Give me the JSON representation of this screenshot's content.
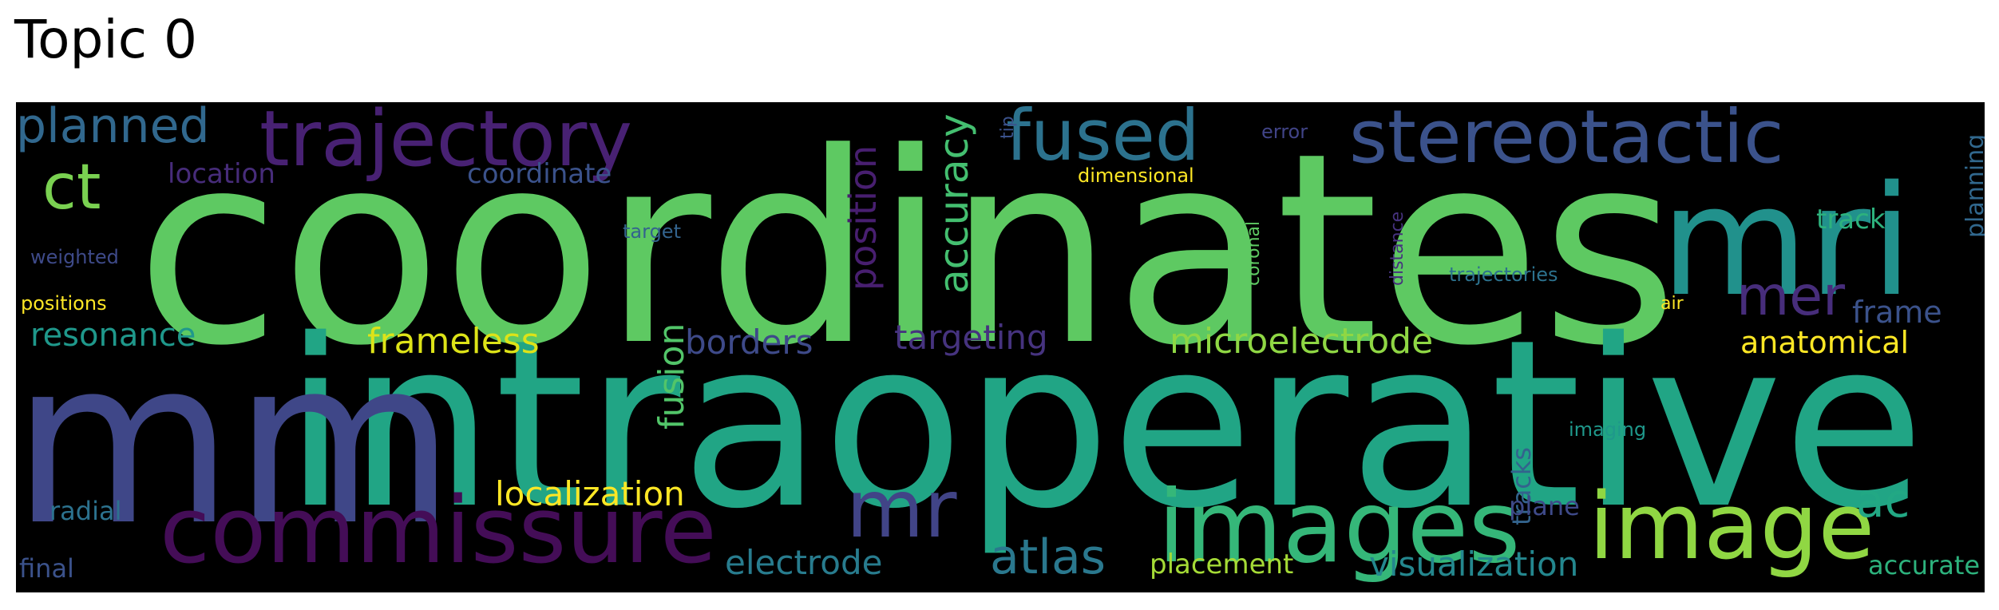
{
  "title": "Topic 0",
  "colors": {
    "background": "#000000",
    "title_text": "#000000",
    "page": "#ffffff"
  },
  "words": [
    {
      "text": "coordinates",
      "weight": 1.0,
      "color": "#5ec962",
      "orientation": "horizontal"
    },
    {
      "text": "intraoperative",
      "weight": 0.92,
      "color": "#21a585",
      "orientation": "horizontal"
    },
    {
      "text": "mm",
      "weight": 0.9,
      "color": "#3f4788",
      "orientation": "horizontal"
    },
    {
      "text": "mri",
      "weight": 0.62,
      "color": "#21918c",
      "orientation": "horizontal"
    },
    {
      "text": "images",
      "weight": 0.4,
      "color": "#35b779",
      "orientation": "horizontal"
    },
    {
      "text": "image",
      "weight": 0.38,
      "color": "#90d743",
      "orientation": "horizontal"
    },
    {
      "text": "commissure",
      "weight": 0.36,
      "color": "#440d57",
      "orientation": "horizontal"
    },
    {
      "text": "trajectory",
      "weight": 0.3,
      "color": "#482173",
      "orientation": "horizontal"
    },
    {
      "text": "stereotactic",
      "weight": 0.29,
      "color": "#3b528b",
      "orientation": "horizontal"
    },
    {
      "text": "fused",
      "weight": 0.27,
      "color": "#2c728e",
      "orientation": "horizontal"
    },
    {
      "text": "mr",
      "weight": 0.28,
      "color": "#414487",
      "orientation": "horizontal"
    },
    {
      "text": "ct",
      "weight": 0.22,
      "color": "#7ad151",
      "orientation": "horizontal"
    },
    {
      "text": "planned",
      "weight": 0.18,
      "color": "#31688e",
      "orientation": "horizontal"
    },
    {
      "text": "atlas",
      "weight": 0.18,
      "color": "#2a788e",
      "orientation": "horizontal"
    },
    {
      "text": "mer",
      "weight": 0.18,
      "color": "#472d7b",
      "orientation": "horizontal"
    },
    {
      "text": "ac",
      "weight": 0.16,
      "color": "#22a884",
      "orientation": "horizontal"
    },
    {
      "text": "accuracy",
      "weight": 0.15,
      "color": "#44bf70",
      "orientation": "vertical"
    },
    {
      "text": "position",
      "weight": 0.14,
      "color": "#481f70",
      "orientation": "vertical"
    },
    {
      "text": "fusion",
      "weight": 0.13,
      "color": "#52c569",
      "orientation": "vertical"
    },
    {
      "text": "microelectrode",
      "weight": 0.13,
      "color": "#8fd744",
      "orientation": "horizontal"
    },
    {
      "text": "frameless",
      "weight": 0.12,
      "color": "#dde318",
      "orientation": "horizontal"
    },
    {
      "text": "localization",
      "weight": 0.12,
      "color": "#fde725",
      "orientation": "horizontal"
    },
    {
      "text": "electrode",
      "weight": 0.12,
      "color": "#287c8e",
      "orientation": "horizontal"
    },
    {
      "text": "visualization",
      "weight": 0.12,
      "color": "#24878e",
      "orientation": "horizontal"
    },
    {
      "text": "borders",
      "weight": 0.12,
      "color": "#3e4a89",
      "orientation": "horizontal"
    },
    {
      "text": "targeting",
      "weight": 0.12,
      "color": "#46337f",
      "orientation": "horizontal"
    },
    {
      "text": "resonance",
      "weight": 0.11,
      "color": "#1f988b",
      "orientation": "horizontal"
    },
    {
      "text": "anatomical",
      "weight": 0.11,
      "color": "#fde725",
      "orientation": "horizontal"
    },
    {
      "text": "frame",
      "weight": 0.11,
      "color": "#3b528b",
      "orientation": "horizontal"
    },
    {
      "text": "placement",
      "weight": 0.1,
      "color": "#a5db36",
      "orientation": "horizontal"
    },
    {
      "text": "accurate",
      "weight": 0.1,
      "color": "#2db27d",
      "orientation": "horizontal"
    },
    {
      "text": "location",
      "weight": 0.1,
      "color": "#472c7a",
      "orientation": "horizontal"
    },
    {
      "text": "coordinate",
      "weight": 0.1,
      "color": "#3b528b",
      "orientation": "horizontal"
    },
    {
      "text": "track",
      "weight": 0.1,
      "color": "#2db27d",
      "orientation": "horizontal"
    },
    {
      "text": "planning",
      "weight": 0.1,
      "color": "#31688e",
      "orientation": "vertical"
    },
    {
      "text": "tracks",
      "weight": 0.1,
      "color": "#33638d",
      "orientation": "vertical"
    },
    {
      "text": "plane",
      "weight": 0.1,
      "color": "#3e4a89",
      "orientation": "horizontal"
    },
    {
      "text": "radial",
      "weight": 0.1,
      "color": "#2c728e",
      "orientation": "horizontal"
    },
    {
      "text": "final",
      "weight": 0.1,
      "color": "#3b528b",
      "orientation": "horizontal"
    },
    {
      "text": "dimensional",
      "weight": 0.07,
      "color": "#fde725",
      "orientation": "horizontal"
    },
    {
      "text": "error",
      "weight": 0.07,
      "color": "#414487",
      "orientation": "horizontal"
    },
    {
      "text": "tip",
      "weight": 0.07,
      "color": "#3b528b",
      "orientation": "vertical"
    },
    {
      "text": "target",
      "weight": 0.07,
      "color": "#33638d",
      "orientation": "horizontal"
    },
    {
      "text": "weighted",
      "weight": 0.07,
      "color": "#3e4a89",
      "orientation": "horizontal"
    },
    {
      "text": "positions",
      "weight": 0.07,
      "color": "#fde725",
      "orientation": "horizontal"
    },
    {
      "text": "coronal",
      "weight": 0.07,
      "color": "#5ec962",
      "orientation": "vertical"
    },
    {
      "text": "distance",
      "weight": 0.07,
      "color": "#46327e",
      "orientation": "vertical"
    },
    {
      "text": "trajectories",
      "weight": 0.07,
      "color": "#2c728e",
      "orientation": "horizontal"
    },
    {
      "text": "air",
      "weight": 0.07,
      "color": "#fde725",
      "orientation": "horizontal"
    },
    {
      "text": "imaging",
      "weight": 0.07,
      "color": "#1f988b",
      "orientation": "horizontal"
    }
  ]
}
